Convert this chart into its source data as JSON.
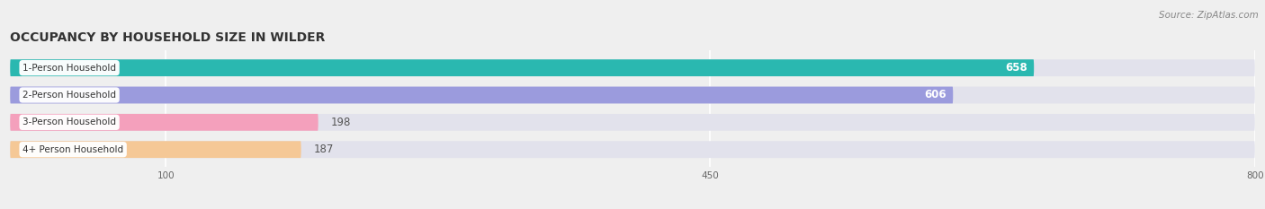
{
  "title": "OCCUPANCY BY HOUSEHOLD SIZE IN WILDER",
  "source": "Source: ZipAtlas.com",
  "categories": [
    "1-Person Household",
    "2-Person Household",
    "3-Person Household",
    "4+ Person Household"
  ],
  "values": [
    658,
    606,
    198,
    187
  ],
  "bar_colors": [
    "#2ab8b0",
    "#9b9bdd",
    "#f4a0bc",
    "#f5c896"
  ],
  "xlim_min": 0,
  "xlim_max": 800,
  "xticks": [
    100,
    450,
    800
  ],
  "figsize": [
    14.06,
    2.33
  ],
  "dpi": 100,
  "title_fontsize": 10,
  "bar_height": 0.62,
  "value_label_fontsize": 8.5,
  "category_fontsize": 7.5,
  "source_fontsize": 7.5,
  "bg_color": "#efefef",
  "bar_bg_color": "#e2e2ec"
}
